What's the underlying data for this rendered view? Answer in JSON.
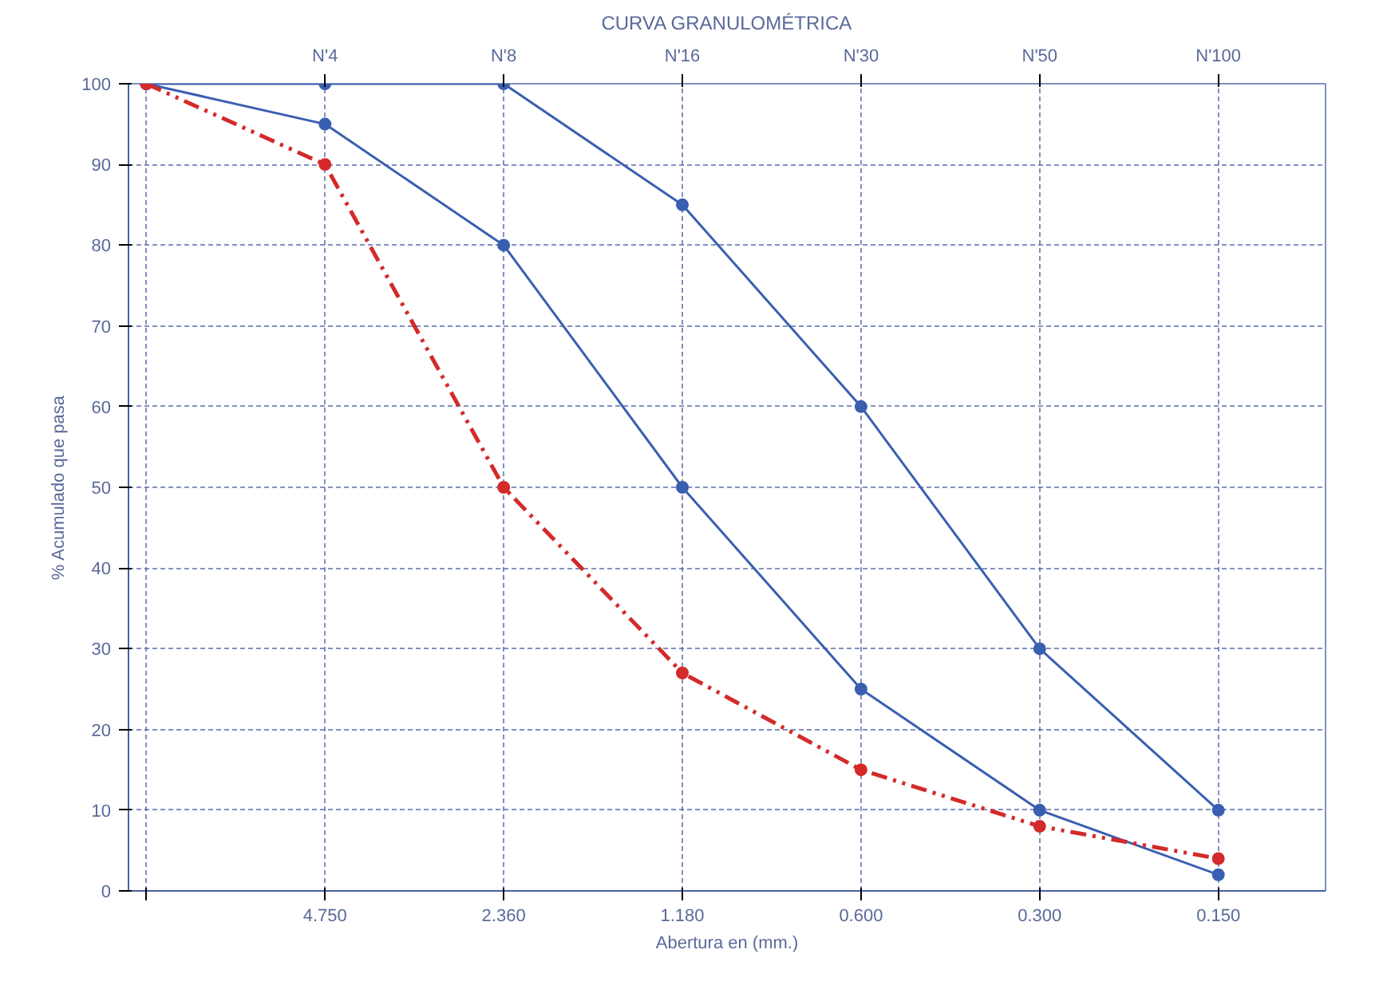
{
  "chart_data": {
    "type": "line",
    "title": "CURVA GRANULOMÉTRICA",
    "xlabel": "Abertura en (mm.)",
    "ylabel": "% Acumulado que pasa",
    "categories": [
      null,
      "4.750",
      "2.360",
      "1.180",
      "0.600",
      "0.300",
      "0.150"
    ],
    "annotations": [
      {
        "text": "N'4",
        "x": "4.750"
      },
      {
        "text": "N'8",
        "x": "2.360"
      },
      {
        "text": "N'16",
        "x": "1.180"
      },
      {
        "text": "N'30",
        "x": "0.600"
      },
      {
        "text": "N'50",
        "x": "0.300"
      },
      {
        "text": "N'100",
        "x": "0.150"
      }
    ],
    "ylim": [
      0,
      100
    ],
    "yticks": [
      0,
      10,
      20,
      30,
      40,
      50,
      60,
      70,
      80,
      90,
      100
    ],
    "grid": true,
    "marker": "circle",
    "series": [
      {
        "color": "#3a5fb0",
        "line_style": "solid",
        "values": [
          100,
          100,
          100,
          85,
          60,
          30,
          10
        ]
      },
      {
        "color": "#3a5fb0",
        "line_style": "solid",
        "values": [
          100,
          95,
          80,
          50,
          25,
          10,
          2
        ]
      },
      {
        "color": "#d42a2a",
        "line_style": "dashed",
        "values": [
          100,
          90,
          50,
          27,
          15,
          8,
          4
        ]
      }
    ]
  }
}
